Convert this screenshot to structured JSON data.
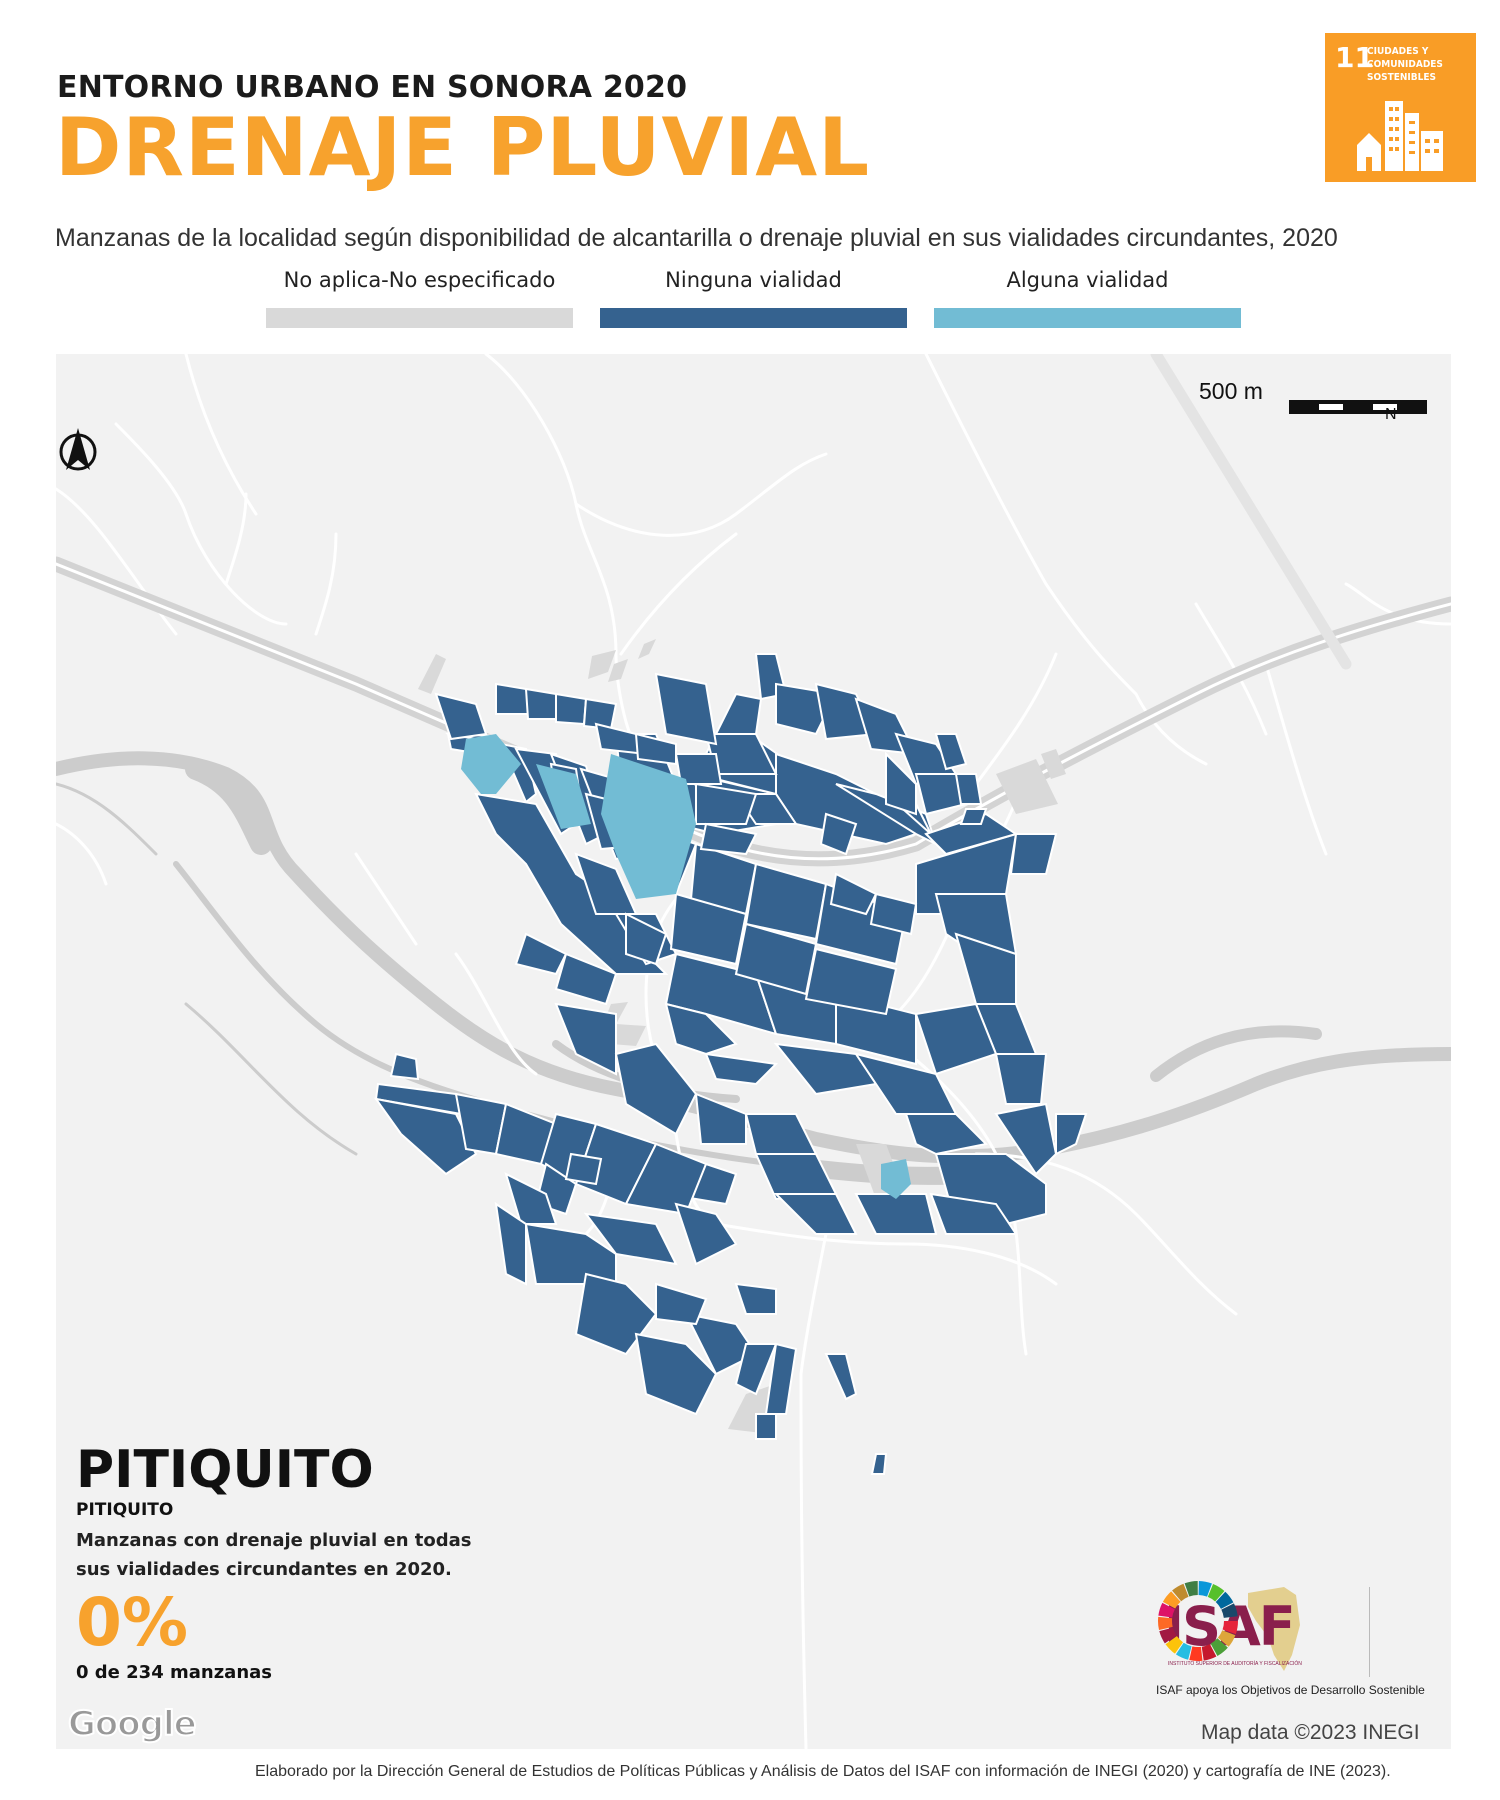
{
  "header": {
    "kicker": "ENTORNO URBANO EN SONORA 2020",
    "title": "DRENAJE PLUVIAL",
    "subtitle": "Manzanas de la localidad según disponibilidad de alcantarilla o drenaje pluvial en sus vialidades circundantes, 2020"
  },
  "sdg_badge": {
    "number": "11",
    "text": "CIUDADES Y COMUNIDADES SOSTENIBLES",
    "color": "#f99d26"
  },
  "legend": [
    {
      "label": "No aplica-No especificado",
      "color": "#d9d9d9"
    },
    {
      "label": "Ninguna vialidad",
      "color": "#35628f"
    },
    {
      "label": "Alguna vialidad",
      "color": "#72bcd4"
    }
  ],
  "map": {
    "scale_label": "500 m",
    "north_label": "N",
    "background_color": "#f2f2f2",
    "river_color": "#cccccc",
    "road_color": "#ffffff",
    "highway_color": "#d3d3d3"
  },
  "locality": {
    "name": "PITIQUITO",
    "sub_name": "PITIQUITO",
    "description": "Manzanas con drenaje pluvial en todas sus vialidades circundantes en 2020.",
    "percentage": "0%",
    "count_text": "0 de 234 manzanas"
  },
  "attribution": {
    "google": "Google",
    "map_data": "Map data ©2023 INEGI"
  },
  "logos": {
    "isaf": "ISAF",
    "isaf_small": "INSTITUTO SUPERIOR DE AUDITORÍA Y FISCALIZACIÓN",
    "caption": "ISAF apoya los Objetivos de Desarrollo Sostenible"
  },
  "footer": "Elaborado por la Dirección General de Estudios de Políticas Públicas y Análisis de Datos del ISAF con información de INEGI (2020) y cartografía de INE (2023)."
}
